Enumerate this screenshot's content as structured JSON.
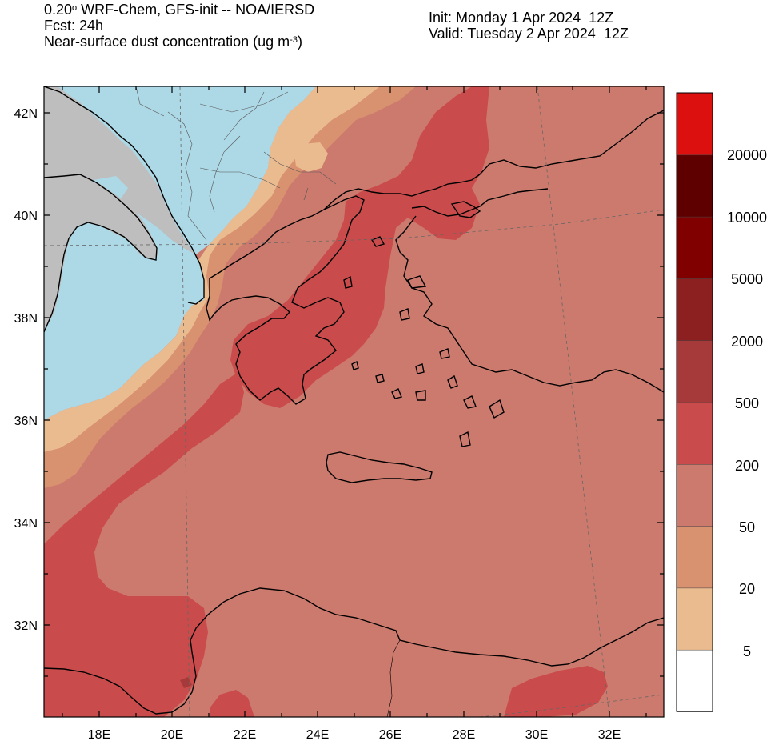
{
  "header": {
    "line1_prefix": "0.20",
    "line1_sup": "o",
    "line1_rest": " WRF-Chem, GFS-init -- NOA/IERSD",
    "line2": "Fcst: 24h",
    "line3_prefix": "Near-surface dust concentration (ug m",
    "line3_sup": "-3",
    "line3_suffix": ")",
    "init": "Init: Monday 1 Apr 2024  12Z",
    "valid": "Valid: Tuesday 2 Apr 2024  12Z"
  },
  "map": {
    "lat_labels": [
      "42N",
      "40N",
      "38N",
      "36N",
      "34N",
      "32N"
    ],
    "lon_labels": [
      "18E",
      "20E",
      "22E",
      "24E",
      "26E",
      "28E",
      "30E",
      "32E"
    ],
    "colors": {
      "land_outside": "#bebebe",
      "sea": "#add8e6",
      "c5": "#ebbb90",
      "c20": "#d99270",
      "c50": "#cc7a6e",
      "c200": "#ca4b4b"
    }
  },
  "colorbar": {
    "labels": [
      "20000",
      "10000",
      "5000",
      "2000",
      "500",
      "200",
      "50",
      "20",
      "5"
    ],
    "colors": [
      "#ffffff",
      "#ebbb90",
      "#d99270",
      "#cc7a6e",
      "#ca4b4b",
      "#a63a3a",
      "#8c2020",
      "#800000",
      "#5f0000",
      "#dd1010"
    ]
  }
}
